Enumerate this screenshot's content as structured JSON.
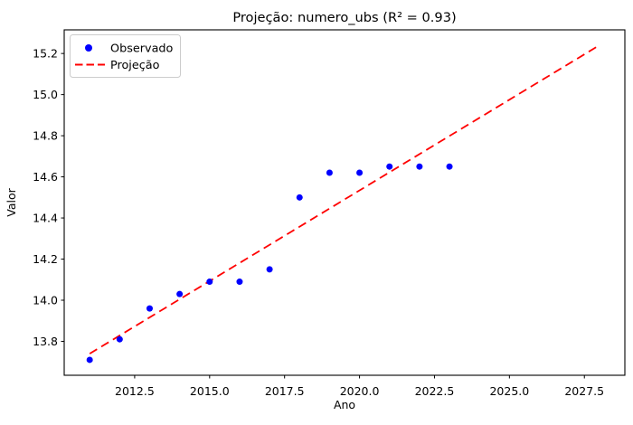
{
  "chart_data": {
    "type": "scatter",
    "title": "Projeção: numero_ubs (R² = 0.93)",
    "xlabel": "Ano",
    "ylabel": "Valor",
    "xlim": [
      2010.15,
      2028.85
    ],
    "ylim": [
      13.635,
      15.315
    ],
    "grid": false,
    "legend_position": "upper left",
    "x_tick_values": [
      2012.5,
      2015.0,
      2017.5,
      2020.0,
      2022.5,
      2025.0,
      2027.5
    ],
    "x_tick_labels": [
      "2012.5",
      "2015.0",
      "2017.5",
      "2020.0",
      "2022.5",
      "2025.0",
      "2027.5"
    ],
    "y_tick_values": [
      13.8,
      14.0,
      14.2,
      14.4,
      14.6,
      14.8,
      15.0,
      15.2
    ],
    "y_tick_labels": [
      "13.8",
      "14.0",
      "14.2",
      "14.4",
      "14.6",
      "14.8",
      "15.0",
      "15.2"
    ],
    "series": [
      {
        "name": "Observado",
        "type": "scatter",
        "marker": "circle",
        "color": "#0000ff",
        "x": [
          2011,
          2012,
          2013,
          2014,
          2015,
          2016,
          2017,
          2018,
          2019,
          2020,
          2021,
          2022,
          2023
        ],
        "y": [
          13.71,
          13.81,
          13.96,
          14.03,
          14.09,
          14.09,
          14.15,
          14.5,
          14.62,
          14.62,
          14.65,
          14.65,
          14.65
        ]
      },
      {
        "name": "Projeção",
        "type": "line",
        "line_style": "dashed",
        "color": "#ff0000",
        "x": [
          2011,
          2028
        ],
        "y": [
          13.74,
          15.24
        ]
      }
    ]
  }
}
